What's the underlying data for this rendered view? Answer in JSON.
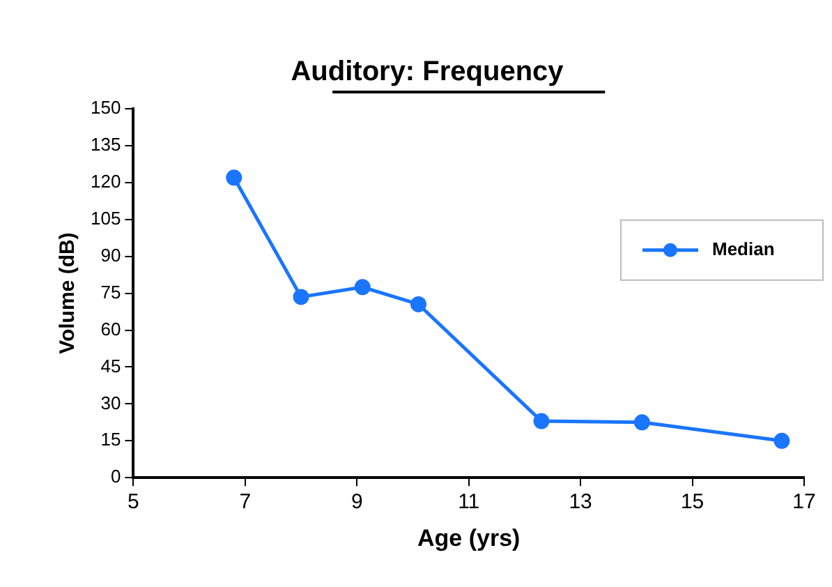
{
  "chart_data": {
    "type": "line",
    "title": "Auditory: Frequency",
    "xlabel": "Age (yrs)",
    "ylabel": "Volume (dB)",
    "x": [
      6.8,
      8.0,
      9.1,
      10.1,
      12.3,
      14.1,
      16.6
    ],
    "series": [
      {
        "name": "Median",
        "color": "#1a75ff",
        "values": [
          122,
          73.5,
          77.5,
          70.5,
          23,
          22.5,
          15
        ]
      }
    ],
    "xlim": [
      5,
      17
    ],
    "xticks": [
      5,
      7,
      9,
      11,
      13,
      15,
      17
    ],
    "ylim": [
      0,
      150
    ],
    "yticks": [
      0,
      15,
      30,
      45,
      60,
      75,
      90,
      105,
      120,
      135,
      150
    ],
    "grid": false,
    "legend": "right",
    "marker": "circle",
    "line_style": "solid"
  }
}
